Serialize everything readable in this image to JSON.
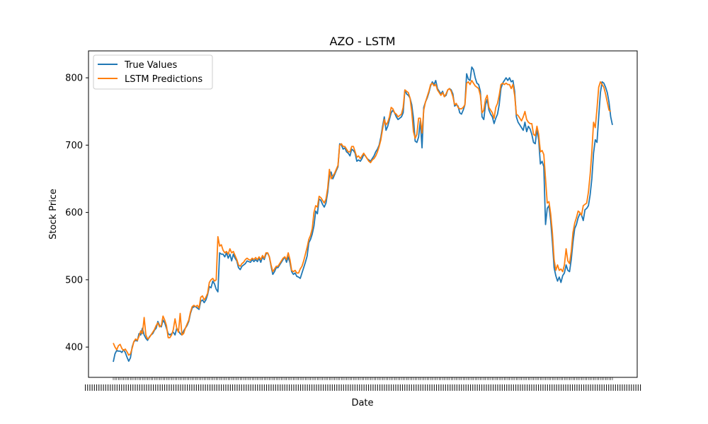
{
  "chart_data": {
    "type": "line",
    "title": "AZO - LSTM",
    "xlabel": "Date",
    "ylabel": "Stock Price",
    "ylim": [
      355,
      840
    ],
    "yticks": [
      400,
      500,
      600,
      700,
      800
    ],
    "ytick_labels": [
      "400",
      "500",
      "600",
      "700",
      "800"
    ],
    "grid": false,
    "legend_position": "top-left",
    "x_tick_labels_note": "dense overlapping date labels (illegible)",
    "series": [
      {
        "name": "True Values",
        "color": "#1f77b4",
        "values": [
          378,
          390,
          395,
          394,
          394,
          392,
          396,
          392,
          385,
          379,
          384,
          400,
          408,
          410,
          409,
          420,
          418,
          428,
          418,
          413,
          410,
          415,
          418,
          420,
          425,
          428,
          438,
          432,
          430,
          440,
          436,
          428,
          420,
          418,
          420,
          422,
          418,
          428,
          424,
          420,
          418,
          424,
          428,
          432,
          438,
          450,
          458,
          460,
          460,
          458,
          456,
          468,
          470,
          466,
          470,
          478,
          490,
          488,
          498,
          494,
          486,
          482,
          540,
          538,
          538,
          534,
          540,
          532,
          538,
          528,
          538,
          532,
          528,
          518,
          515,
          520,
          522,
          524,
          528,
          527,
          526,
          530,
          527,
          530,
          527,
          532,
          526,
          534,
          530,
          538,
          540,
          534,
          520,
          508,
          512,
          518,
          518,
          522,
          526,
          530,
          534,
          526,
          534,
          525,
          512,
          508,
          510,
          505,
          504,
          502,
          510,
          518,
          526,
          535,
          555,
          560,
          568,
          580,
          602,
          598,
          620,
          618,
          612,
          608,
          614,
          630,
          655,
          660,
          650,
          656,
          662,
          668,
          702,
          700,
          694,
          696,
          690,
          688,
          684,
          694,
          692,
          688,
          676,
          678,
          676,
          680,
          686,
          684,
          680,
          678,
          676,
          680,
          684,
          690,
          694,
          700,
          712,
          728,
          742,
          722,
          728,
          738,
          748,
          752,
          748,
          742,
          738,
          740,
          742,
          748,
          782,
          776,
          774,
          770,
          760,
          740,
          706,
          704,
          712,
          736,
          696,
          756,
          764,
          770,
          778,
          788,
          794,
          790,
          796,
          784,
          780,
          776,
          780,
          772,
          774,
          782,
          784,
          782,
          776,
          758,
          760,
          758,
          748,
          746,
          752,
          760,
          806,
          798,
          796,
          816,
          812,
          800,
          792,
          790,
          780,
          742,
          738,
          760,
          768,
          752,
          746,
          742,
          732,
          740,
          746,
          760,
          784,
          792,
          796,
          800,
          796,
          800,
          794,
          796,
          780,
          742,
          734,
          730,
          726,
          722,
          734,
          720,
          728,
          724,
          716,
          704,
          702,
          724,
          708,
          672,
          676,
          668,
          582,
          606,
          610,
          588,
          556,
          518,
          506,
          498,
          504,
          496,
          506,
          510,
          522,
          514,
          512,
          530,
          556,
          576,
          582,
          592,
          598,
          596,
          588,
          604,
          606,
          610,
          626,
          650,
          688,
          708,
          704,
          742,
          778,
          794,
          792,
          786,
          778,
          764,
          742,
          730
        ],
        "values_note": "x index positions correspond to sequential trading dates (labels illegible)"
      },
      {
        "name": "LSTM Predictions",
        "color": "#ff7f0e",
        "values": [
          406,
          400,
          396,
          402,
          404,
          398,
          395,
          397,
          393,
          388,
          390,
          398,
          408,
          412,
          410,
          416,
          424,
          420,
          444,
          418,
          412,
          414,
          418,
          422,
          426,
          432,
          436,
          430,
          432,
          446,
          440,
          432,
          414,
          414,
          418,
          426,
          442,
          428,
          422,
          450,
          418,
          420,
          428,
          434,
          440,
          452,
          460,
          462,
          460,
          462,
          458,
          474,
          476,
          470,
          474,
          480,
          496,
          500,
          502,
          498,
          500,
          564,
          550,
          552,
          544,
          540,
          542,
          538,
          546,
          540,
          542,
          536,
          530,
          522,
          520,
          524,
          526,
          530,
          532,
          530,
          529,
          532,
          530,
          533,
          530,
          534,
          530,
          536,
          532,
          540,
          540,
          534,
          522,
          512,
          516,
          520,
          520,
          524,
          528,
          532,
          534,
          530,
          540,
          530,
          514,
          512,
          514,
          510,
          510,
          516,
          520,
          528,
          538,
          548,
          560,
          566,
          576,
          600,
          610,
          608,
          624,
          622,
          618,
          614,
          620,
          636,
          664,
          650,
          654,
          658,
          664,
          670,
          700,
          702,
          698,
          698,
          694,
          690,
          690,
          698,
          698,
          690,
          682,
          684,
          680,
          684,
          688,
          684,
          680,
          676,
          674,
          678,
          680,
          684,
          690,
          698,
          708,
          724,
          738,
          730,
          734,
          742,
          756,
          754,
          748,
          746,
          742,
          744,
          746,
          756,
          782,
          780,
          778,
          770,
          750,
          720,
          710,
          716,
          740,
          740,
          718,
          752,
          764,
          772,
          780,
          790,
          792,
          788,
          790,
          782,
          778,
          774,
          778,
          772,
          776,
          782,
          784,
          780,
          772,
          760,
          762,
          756,
          754,
          754,
          756,
          760,
          792,
          794,
          790,
          796,
          792,
          788,
          786,
          784,
          774,
          748,
          752,
          768,
          774,
          756,
          752,
          748,
          740,
          756,
          762,
          774,
          790,
          792,
          790,
          792,
          790,
          790,
          784,
          790,
          774,
          746,
          744,
          740,
          736,
          742,
          750,
          738,
          734,
          732,
          732,
          716,
          714,
          728,
          716,
          690,
          692,
          686,
          650,
          614,
          616,
          598,
          570,
          530,
          514,
          522,
          514,
          516,
          512,
          522,
          546,
          528,
          524,
          542,
          570,
          584,
          592,
          602,
          600,
          596,
          610,
          612,
          614,
          630,
          656,
          690,
          734,
          726,
          754,
          786,
          794,
          790,
          786,
          776,
          764,
          752,
          750
        ],
        "values_note": "x index positions correspond to sequential trading dates (labels illegible)"
      }
    ]
  }
}
